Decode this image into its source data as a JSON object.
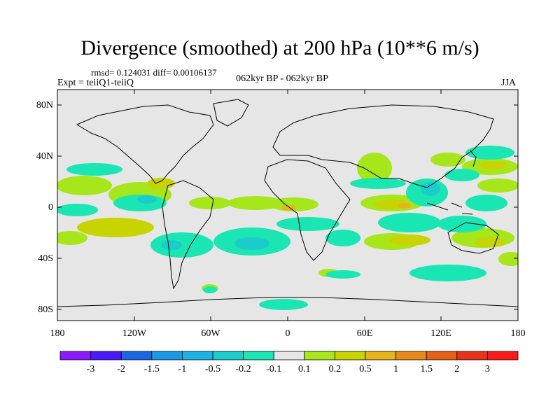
{
  "title": "Divergence (smoothed) at 200 hPa (10**6 m/s)",
  "stats_line": "rmsd= 0.124031 diff= 0.00106137",
  "experiment": "Expt = teiiQ1-teiiQ",
  "period": "062kyr BP - 062kyr BP",
  "season": "JJA",
  "map": {
    "lat_labels": [
      "80N",
      "40N",
      "0",
      "40S",
      "80S"
    ],
    "lon_labels": [
      "180",
      "120W",
      "60W",
      "0",
      "60E",
      "120E",
      "180"
    ],
    "background_color": "#e6e6e6",
    "coastline_color": "#000000"
  },
  "colorbar": {
    "labels": [
      "-3",
      "-2",
      "-1.5",
      "-1",
      "-0.5",
      "-0.2",
      "-0.1",
      "0.1",
      "0.2",
      "0.5",
      "1",
      "1.5",
      "2",
      "3"
    ],
    "colors": [
      "#8c1aff",
      "#4a1aff",
      "#1a66e6",
      "#1a99e6",
      "#1ab3e6",
      "#1acccc",
      "#1ae6b3",
      "#e6e6e6",
      "#a6e61a",
      "#c8d400",
      "#e6b31a",
      "#e68a1a",
      "#e6601a",
      "#e6331a",
      "#ff1a1a"
    ]
  }
}
